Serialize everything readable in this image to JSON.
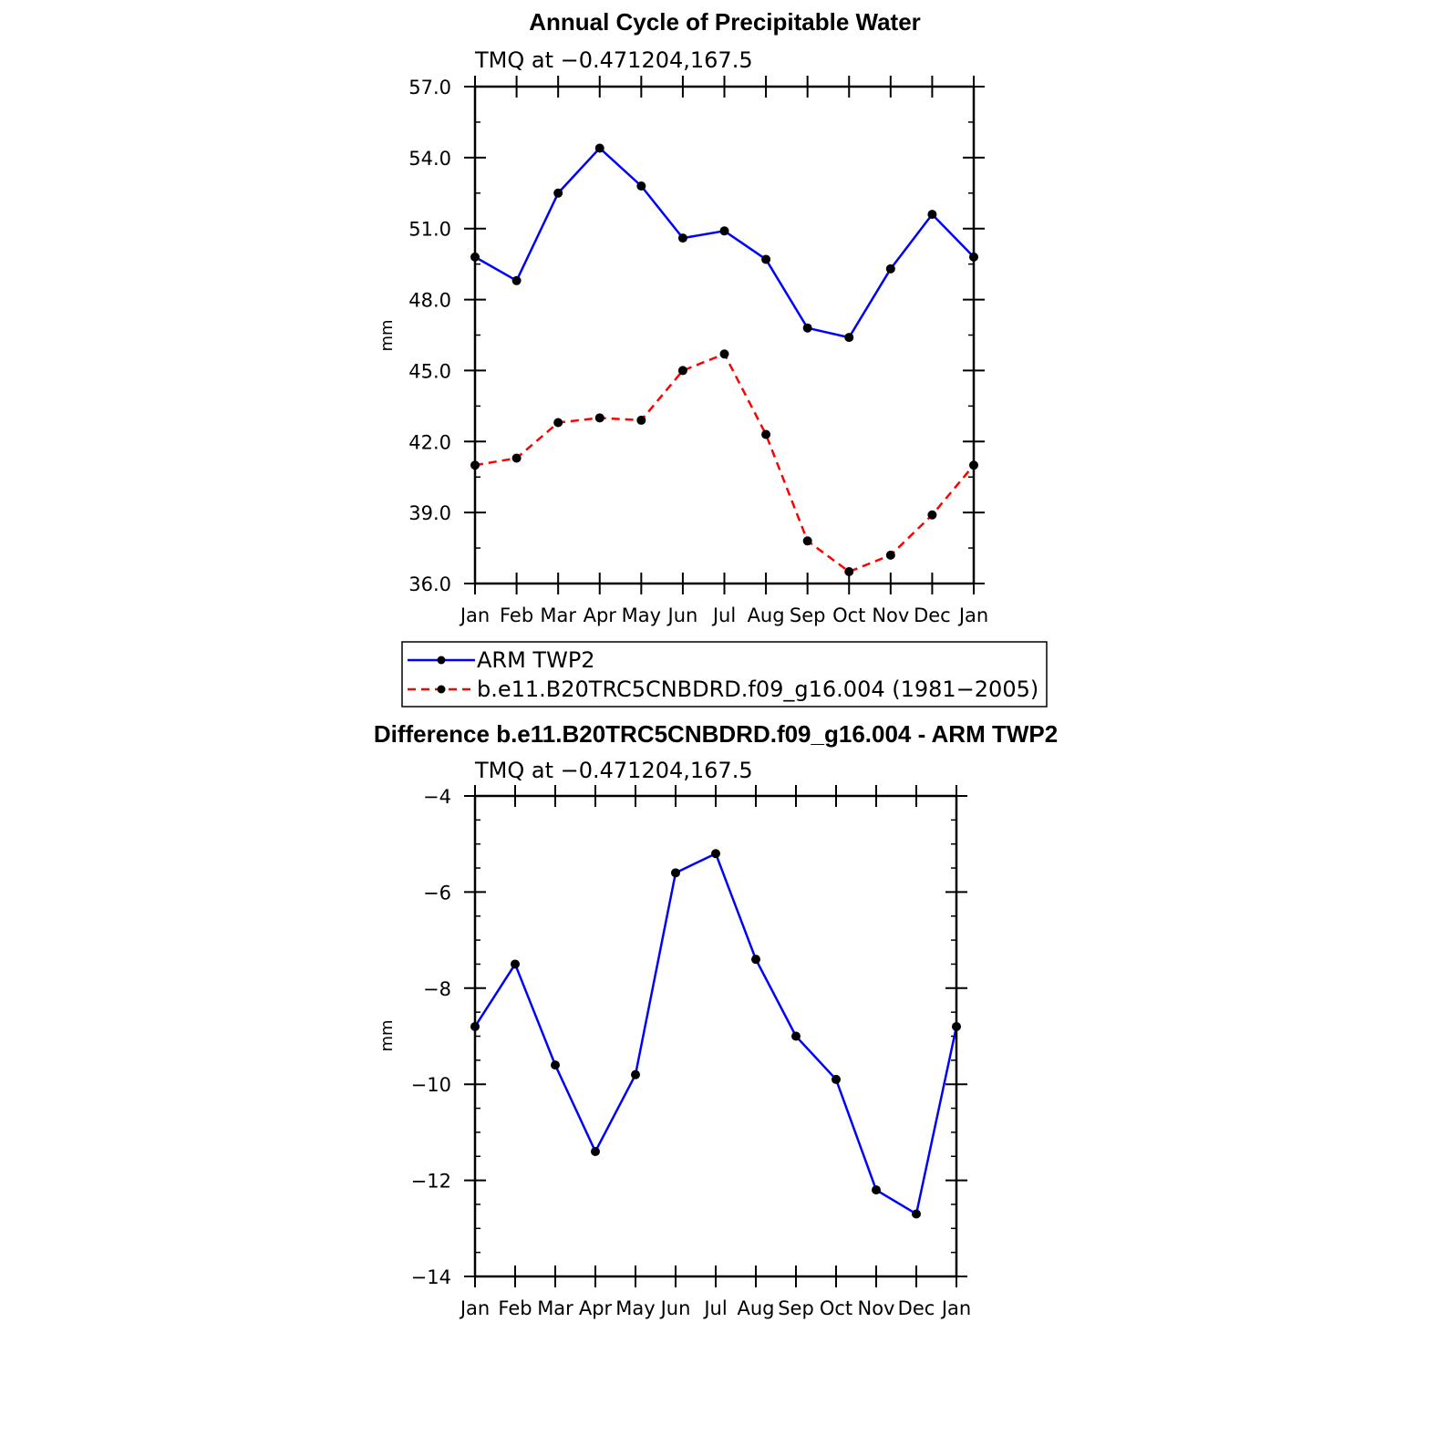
{
  "chart_data": [
    {
      "type": "line",
      "title": "Annual Cycle of Precipitable Water",
      "subtitle": "TMQ at −0.471204,167.5",
      "ylabel": "mm",
      "ylim": [
        36.0,
        57.0
      ],
      "yticks": [
        "36.0",
        "39.0",
        "42.0",
        "45.0",
        "48.0",
        "51.0",
        "54.0",
        "57.0"
      ],
      "categories": [
        "Jan",
        "Feb",
        "Mar",
        "Apr",
        "May",
        "Jun",
        "Jul",
        "Aug",
        "Sep",
        "Oct",
        "Nov",
        "Dec",
        "Jan"
      ],
      "series": [
        {
          "name": "ARM TWP2",
          "color": "#0000ff",
          "dash": "solid",
          "values": [
            49.8,
            48.8,
            52.5,
            54.4,
            52.8,
            50.6,
            50.9,
            49.7,
            46.8,
            46.4,
            49.3,
            51.6,
            49.8
          ]
        },
        {
          "name": "b.e11.B20TRC5CNBDRD.f09_g16.004 (1981−2005)",
          "color": "#ff0000",
          "dash": "dashed",
          "values": [
            41.0,
            41.3,
            42.8,
            43.0,
            42.9,
            45.0,
            45.7,
            42.3,
            37.8,
            36.5,
            37.2,
            38.9,
            41.0
          ]
        }
      ],
      "legend_position": "below"
    },
    {
      "type": "line",
      "title": "Difference b.e11.B20TRC5CNBDRD.f09_g16.004 - ARM TWP2",
      "subtitle": "TMQ at −0.471204,167.5",
      "ylabel": "mm",
      "ylim": [
        -14,
        -4
      ],
      "yticks": [
        "−14",
        "−12",
        "−10",
        "−8",
        "−6",
        "−4"
      ],
      "categories": [
        "Jan",
        "Feb",
        "Mar",
        "Apr",
        "May",
        "Jun",
        "Jul",
        "Aug",
        "Sep",
        "Oct",
        "Nov",
        "Dec",
        "Jan"
      ],
      "series": [
        {
          "color": "#0000ff",
          "dash": "solid",
          "values": [
            -8.8,
            -7.5,
            -9.6,
            -11.4,
            -9.8,
            -5.6,
            -5.2,
            -7.4,
            -9.0,
            -9.9,
            -12.2,
            -12.7,
            -8.8
          ]
        }
      ]
    }
  ]
}
